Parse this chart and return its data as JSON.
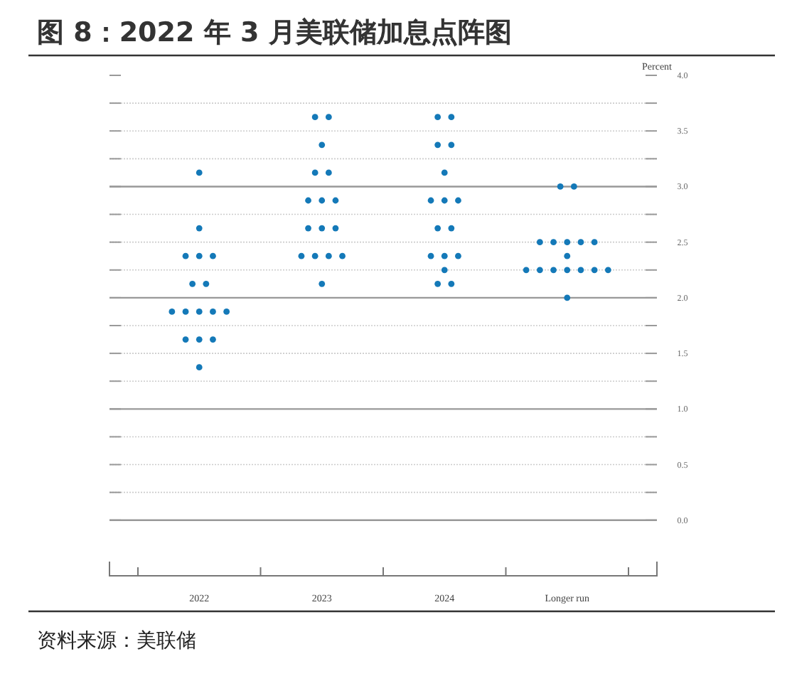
{
  "chart_data": {
    "type": "scatter",
    "title": "图 8：2022 年 3 月美联储加息点阵图",
    "ylabel": "Percent",
    "categories": [
      "2022",
      "2023",
      "2024",
      "Longer run"
    ],
    "series": [
      {
        "color": "#1479b8",
        "values": [
          3.125,
          3.625,
          3.625,
          3.0
        ]
      },
      {
        "color": "#1479b8",
        "values": [
          2.625,
          3.625,
          3.625,
          3.0
        ]
      },
      {
        "color": "#1479b8",
        "values": [
          2.375,
          3.375,
          3.375,
          2.5
        ]
      },
      {
        "color": "#1479b8",
        "values": [
          2.375,
          3.125,
          3.375,
          2.5
        ]
      },
      {
        "color": "#1479b8",
        "values": [
          2.375,
          3.125,
          3.125,
          2.5
        ]
      },
      {
        "color": "#1479b8",
        "values": [
          2.125,
          2.875,
          2.875,
          2.5
        ]
      },
      {
        "color": "#1479b8",
        "values": [
          2.125,
          2.875,
          2.875,
          2.5
        ]
      },
      {
        "color": "#1479b8",
        "values": [
          1.875,
          2.875,
          2.875,
          2.375
        ]
      },
      {
        "color": "#1479b8",
        "values": [
          1.875,
          2.625,
          2.625,
          2.25
        ]
      },
      {
        "color": "#1479b8",
        "values": [
          1.875,
          2.625,
          2.625,
          2.25
        ]
      },
      {
        "color": "#1479b8",
        "values": [
          1.875,
          2.625,
          2.375,
          2.25
        ]
      },
      {
        "color": "#1479b8",
        "values": [
          1.875,
          2.375,
          2.375,
          2.25
        ]
      },
      {
        "color": "#1479b8",
        "values": [
          1.625,
          2.375,
          2.375,
          2.25
        ]
      },
      {
        "color": "#1479b8",
        "values": [
          1.625,
          2.375,
          2.25,
          2.25
        ]
      },
      {
        "color": "#1479b8",
        "values": [
          1.625,
          2.375,
          2.125,
          2.25
        ]
      },
      {
        "color": "#1479b8",
        "values": [
          1.375,
          2.125,
          2.125,
          2.0
        ]
      }
    ],
    "ylim": [
      -0.5,
      4
    ],
    "yticks": [
      {
        "value": 0,
        "label": "0.0"
      },
      {
        "value": 0.25,
        "label": null
      },
      0.5,
      {
        "value": 0.75,
        "label": null
      },
      {
        "value": 1,
        "label": "1.0"
      },
      {
        "value": 1.25,
        "label": null
      },
      1.5,
      {
        "value": 1.75,
        "label": null
      },
      {
        "value": 2,
        "label": "2.0"
      },
      {
        "value": 2.25,
        "label": null
      },
      2.5,
      {
        "value": 2.75,
        "label": null
      },
      {
        "value": 3,
        "label": "3.0"
      },
      {
        "value": 3.25,
        "label": null
      },
      3.5,
      {
        "value": 3.75,
        "label": null
      },
      {
        "value": 4,
        "label": "4.0"
      }
    ],
    "grid": "y",
    "marker": "circle",
    "annotations": [
      "资料来源：美联储"
    ]
  }
}
